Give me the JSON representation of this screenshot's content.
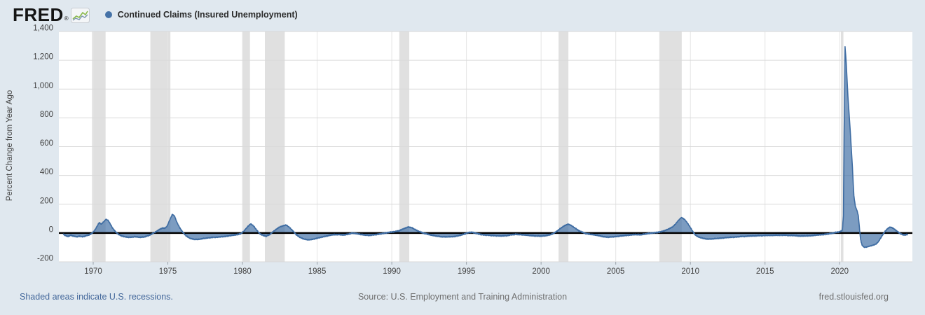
{
  "header": {
    "logo_text": "FRED",
    "logo_registered": "®",
    "legend": {
      "marker_color": "#4572a7",
      "label": "Continued Claims (Insured Unemployment)"
    }
  },
  "footer": {
    "recession_note": "Shaded areas indicate U.S. recessions.",
    "source": "Source: U.S. Employment and Training Administration",
    "site": "fred.stlouisfed.org"
  },
  "colors": {
    "page_background": "#e0e8ef",
    "plot_background": "#ffffff",
    "series_line": "#3e6ca2",
    "series_fill": "rgba(69,114,167,0.7)",
    "legend_marker": "#4572a7",
    "recession_band": "#e0e0e0",
    "h_gridline": "#d9d9d9",
    "v_gridline": "#e5e5e5",
    "zero_line": "#000000",
    "axis_text": "#424242",
    "tick_mark": "#9aa2aa",
    "link_text": "#44689b",
    "footer_text": "#6f6f6f"
  },
  "chart_data": {
    "type": "area",
    "title": "Continued Claims (Insured Unemployment)",
    "ylabel": "Percent Change from Year Ago",
    "xlabel": "",
    "x_range": [
      1967.7,
      2024.87
    ],
    "ylim": [
      -200,
      1400
    ],
    "grid": true,
    "zero_line": true,
    "legend_position": "top-left",
    "y_ticks": [
      {
        "value": 1400,
        "label": "1,400"
      },
      {
        "value": 1200,
        "label": "1,200"
      },
      {
        "value": 1000,
        "label": "1,000"
      },
      {
        "value": 800,
        "label": "800"
      },
      {
        "value": 600,
        "label": "600"
      },
      {
        "value": 400,
        "label": "400"
      },
      {
        "value": 200,
        "label": "200"
      },
      {
        "value": 0,
        "label": "0"
      },
      {
        "value": -200,
        "label": "-200"
      }
    ],
    "x_ticks": [
      {
        "value": 1970,
        "label": "1970"
      },
      {
        "value": 1975,
        "label": "1975"
      },
      {
        "value": 1980,
        "label": "1980"
      },
      {
        "value": 1985,
        "label": "1985"
      },
      {
        "value": 1990,
        "label": "1990"
      },
      {
        "value": 1995,
        "label": "1995"
      },
      {
        "value": 2000,
        "label": "2000"
      },
      {
        "value": 2005,
        "label": "2005"
      },
      {
        "value": 2010,
        "label": "2010"
      },
      {
        "value": 2015,
        "label": "2015"
      },
      {
        "value": 2020,
        "label": "2020"
      }
    ],
    "recessions": [
      [
        1969.92,
        1970.83
      ],
      [
        1973.83,
        1975.17
      ],
      [
        1980.0,
        1980.5
      ],
      [
        1981.5,
        1982.83
      ],
      [
        1990.5,
        1991.17
      ],
      [
        2001.17,
        2001.83
      ],
      [
        2007.92,
        2009.42
      ],
      [
        2020.08,
        2020.25
      ]
    ],
    "noise": {
      "amplitude": 4.7,
      "damping": 120
    },
    "series": [
      {
        "name": "Continued Claims (Insured Unemployment)",
        "color": "#4572a7",
        "points": [
          [
            1968.0,
            -10
          ],
          [
            1968.15,
            -18
          ],
          [
            1968.3,
            -24
          ],
          [
            1968.5,
            -16
          ],
          [
            1968.7,
            -22
          ],
          [
            1968.9,
            -26
          ],
          [
            1969.1,
            -22
          ],
          [
            1969.3,
            -26
          ],
          [
            1969.5,
            -20
          ],
          [
            1969.7,
            -14
          ],
          [
            1969.9,
            -4
          ],
          [
            1970.1,
            18
          ],
          [
            1970.25,
            45
          ],
          [
            1970.4,
            72
          ],
          [
            1970.55,
            62
          ],
          [
            1970.7,
            78
          ],
          [
            1970.85,
            95
          ],
          [
            1971.0,
            88
          ],
          [
            1971.15,
            62
          ],
          [
            1971.3,
            34
          ],
          [
            1971.5,
            8
          ],
          [
            1971.7,
            -10
          ],
          [
            1971.9,
            -20
          ],
          [
            1972.2,
            -28
          ],
          [
            1972.5,
            -30
          ],
          [
            1972.8,
            -26
          ],
          [
            1973.1,
            -30
          ],
          [
            1973.4,
            -28
          ],
          [
            1973.7,
            -18
          ],
          [
            1973.95,
            -6
          ],
          [
            1974.15,
            6
          ],
          [
            1974.4,
            22
          ],
          [
            1974.6,
            34
          ],
          [
            1974.8,
            33
          ],
          [
            1974.95,
            48
          ],
          [
            1975.1,
            85
          ],
          [
            1975.3,
            130
          ],
          [
            1975.45,
            118
          ],
          [
            1975.6,
            76
          ],
          [
            1975.8,
            36
          ],
          [
            1976.0,
            6
          ],
          [
            1976.2,
            -18
          ],
          [
            1976.5,
            -38
          ],
          [
            1976.8,
            -45
          ],
          [
            1977.1,
            -44
          ],
          [
            1977.4,
            -38
          ],
          [
            1977.7,
            -34
          ],
          [
            1978.0,
            -30
          ],
          [
            1978.4,
            -28
          ],
          [
            1978.8,
            -24
          ],
          [
            1979.2,
            -18
          ],
          [
            1979.6,
            -12
          ],
          [
            1979.9,
            -4
          ],
          [
            1980.1,
            14
          ],
          [
            1980.35,
            45
          ],
          [
            1980.55,
            64
          ],
          [
            1980.75,
            48
          ],
          [
            1980.95,
            20
          ],
          [
            1981.15,
            -4
          ],
          [
            1981.4,
            -18
          ],
          [
            1981.6,
            -22
          ],
          [
            1981.8,
            -12
          ],
          [
            1982.0,
            4
          ],
          [
            1982.25,
            26
          ],
          [
            1982.5,
            42
          ],
          [
            1982.75,
            52
          ],
          [
            1982.95,
            55
          ],
          [
            1983.15,
            38
          ],
          [
            1983.4,
            12
          ],
          [
            1983.6,
            -12
          ],
          [
            1983.85,
            -30
          ],
          [
            1984.1,
            -42
          ],
          [
            1984.4,
            -48
          ],
          [
            1984.7,
            -44
          ],
          [
            1985.0,
            -36
          ],
          [
            1985.3,
            -28
          ],
          [
            1985.7,
            -20
          ],
          [
            1986.0,
            -13
          ],
          [
            1986.4,
            -10
          ],
          [
            1986.8,
            -14
          ],
          [
            1987.1,
            -8
          ],
          [
            1987.4,
            0
          ],
          [
            1987.6,
            -4
          ],
          [
            1987.9,
            -10
          ],
          [
            1988.2,
            -14
          ],
          [
            1988.5,
            -16
          ],
          [
            1988.8,
            -12
          ],
          [
            1989.1,
            -8
          ],
          [
            1989.4,
            -3
          ],
          [
            1989.7,
            2
          ],
          [
            1989.95,
            6
          ],
          [
            1990.2,
            10
          ],
          [
            1990.5,
            16
          ],
          [
            1990.7,
            26
          ],
          [
            1990.9,
            34
          ],
          [
            1991.1,
            42
          ],
          [
            1991.3,
            38
          ],
          [
            1991.5,
            28
          ],
          [
            1991.7,
            16
          ],
          [
            1991.9,
            8
          ],
          [
            1992.1,
            0
          ],
          [
            1992.4,
            -8
          ],
          [
            1992.7,
            -16
          ],
          [
            1993.0,
            -22
          ],
          [
            1993.4,
            -26
          ],
          [
            1993.8,
            -27
          ],
          [
            1994.2,
            -24
          ],
          [
            1994.6,
            -16
          ],
          [
            1994.9,
            -6
          ],
          [
            1995.1,
            2
          ],
          [
            1995.3,
            6
          ],
          [
            1995.5,
            2
          ],
          [
            1995.8,
            -6
          ],
          [
            1996.1,
            -12
          ],
          [
            1996.5,
            -16
          ],
          [
            1996.9,
            -18
          ],
          [
            1997.3,
            -21
          ],
          [
            1997.7,
            -18
          ],
          [
            1998.0,
            -12
          ],
          [
            1998.3,
            -9
          ],
          [
            1998.6,
            -11
          ],
          [
            1998.9,
            -14
          ],
          [
            1999.2,
            -17
          ],
          [
            1999.6,
            -20
          ],
          [
            2000.0,
            -22
          ],
          [
            2000.3,
            -19
          ],
          [
            2000.6,
            -12
          ],
          [
            2000.85,
            -2
          ],
          [
            2001.05,
            12
          ],
          [
            2001.3,
            32
          ],
          [
            2001.55,
            50
          ],
          [
            2001.8,
            62
          ],
          [
            2002.0,
            54
          ],
          [
            2002.25,
            36
          ],
          [
            2002.5,
            18
          ],
          [
            2002.75,
            6
          ],
          [
            2002.95,
            -2
          ],
          [
            2003.2,
            -8
          ],
          [
            2003.5,
            -12
          ],
          [
            2003.8,
            -17
          ],
          [
            2004.1,
            -24
          ],
          [
            2004.5,
            -29
          ],
          [
            2004.9,
            -26
          ],
          [
            2005.3,
            -21
          ],
          [
            2005.7,
            -17
          ],
          [
            2006.0,
            -13
          ],
          [
            2006.3,
            -10
          ],
          [
            2006.7,
            -12
          ],
          [
            2007.0,
            -7
          ],
          [
            2007.3,
            -2
          ],
          [
            2007.6,
            2
          ],
          [
            2007.9,
            6
          ],
          [
            2008.2,
            14
          ],
          [
            2008.5,
            26
          ],
          [
            2008.8,
            42
          ],
          [
            2009.0,
            62
          ],
          [
            2009.2,
            88
          ],
          [
            2009.4,
            108
          ],
          [
            2009.6,
            96
          ],
          [
            2009.8,
            70
          ],
          [
            2010.0,
            38
          ],
          [
            2010.15,
            12
          ],
          [
            2010.3,
            -10
          ],
          [
            2010.5,
            -26
          ],
          [
            2010.8,
            -36
          ],
          [
            2011.1,
            -42
          ],
          [
            2011.5,
            -41
          ],
          [
            2011.9,
            -37
          ],
          [
            2012.3,
            -33
          ],
          [
            2012.7,
            -30
          ],
          [
            2013.1,
            -27
          ],
          [
            2013.5,
            -24
          ],
          [
            2014.0,
            -21
          ],
          [
            2014.5,
            -19
          ],
          [
            2015.0,
            -17
          ],
          [
            2015.5,
            -16
          ],
          [
            2016.0,
            -15
          ],
          [
            2016.5,
            -16
          ],
          [
            2017.0,
            -18
          ],
          [
            2017.4,
            -21
          ],
          [
            2017.8,
            -20
          ],
          [
            2018.2,
            -17
          ],
          [
            2018.6,
            -13
          ],
          [
            2019.0,
            -9
          ],
          [
            2019.3,
            -5
          ],
          [
            2019.6,
            0
          ],
          [
            2019.85,
            6
          ],
          [
            2020.05,
            10
          ],
          [
            2020.18,
            20
          ],
          [
            2020.25,
            120
          ],
          [
            2020.3,
            700
          ],
          [
            2020.36,
            1295
          ],
          [
            2020.44,
            1180
          ],
          [
            2020.55,
            950
          ],
          [
            2020.7,
            720
          ],
          [
            2020.85,
            460
          ],
          [
            2020.95,
            260
          ],
          [
            2021.05,
            185
          ],
          [
            2021.15,
            160
          ],
          [
            2021.25,
            120
          ],
          [
            2021.32,
            40
          ],
          [
            2021.4,
            -45
          ],
          [
            2021.5,
            -85
          ],
          [
            2021.65,
            -100
          ],
          [
            2021.85,
            -96
          ],
          [
            2022.05,
            -90
          ],
          [
            2022.25,
            -84
          ],
          [
            2022.45,
            -76
          ],
          [
            2022.6,
            -60
          ],
          [
            2022.75,
            -35
          ],
          [
            2022.9,
            -10
          ],
          [
            2023.05,
            12
          ],
          [
            2023.2,
            30
          ],
          [
            2023.35,
            40
          ],
          [
            2023.5,
            38
          ],
          [
            2023.65,
            28
          ],
          [
            2023.8,
            16
          ],
          [
            2023.95,
            4
          ],
          [
            2024.1,
            -6
          ],
          [
            2024.25,
            -12
          ],
          [
            2024.4,
            -13
          ],
          [
            2024.55,
            -9
          ]
        ]
      }
    ]
  }
}
